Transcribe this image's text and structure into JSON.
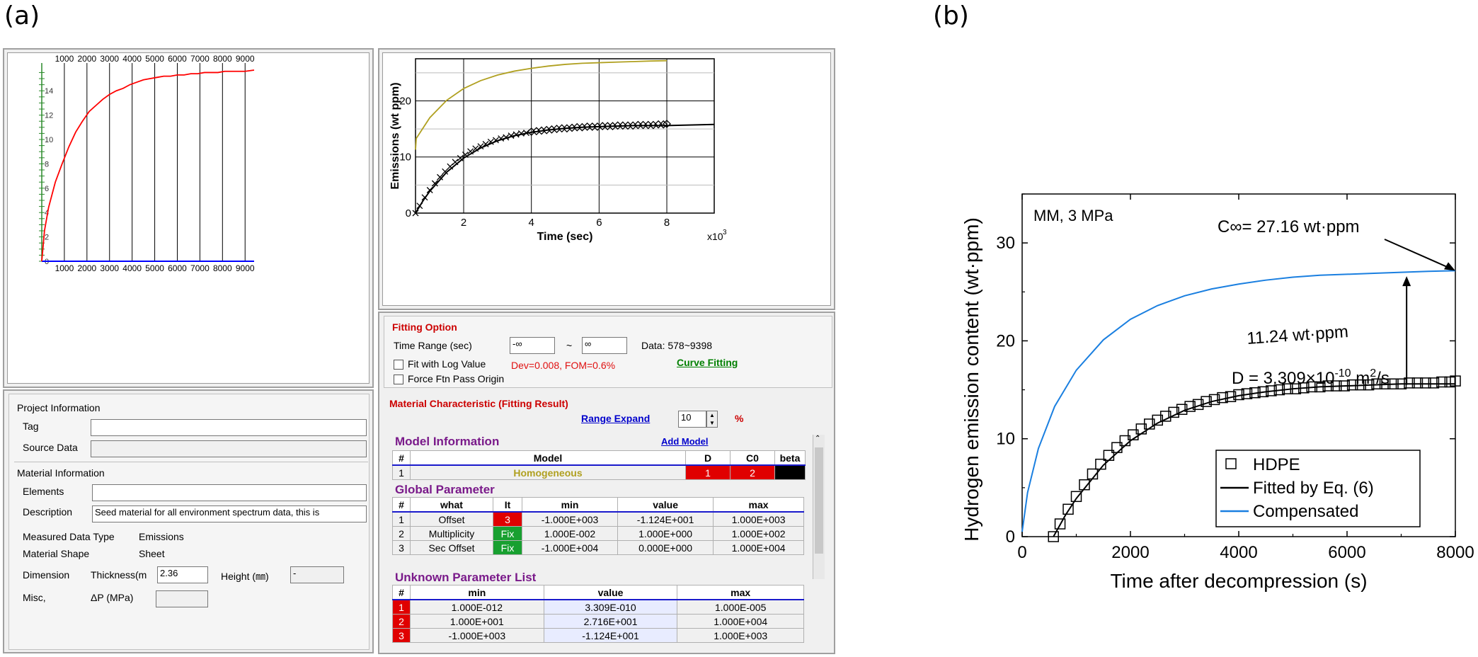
{
  "labels": {
    "a": "(a)",
    "b": "(b)"
  },
  "left_chart": {
    "ticks_x": [
      "1000",
      "2000",
      "3000",
      "4000",
      "5000",
      "6000",
      "7000",
      "8000",
      "9000"
    ],
    "ticks_y": [
      "14",
      "12",
      "10",
      "8",
      "6",
      "4",
      "2",
      "0"
    ],
    "x": [
      0,
      120,
      300,
      600,
      900,
      1200,
      1500,
      1800,
      2100,
      2400,
      2700,
      3000,
      3300,
      3600,
      3900,
      4200,
      4500,
      4800,
      5100,
      5400,
      5700,
      6000,
      6300,
      6600,
      6900,
      7200,
      7500,
      7800,
      8100,
      8400,
      8700,
      9000,
      9400
    ],
    "y": [
      0,
      2.5,
      4.4,
      6.5,
      8.0,
      9.4,
      10.6,
      11.5,
      12.3,
      12.8,
      13.3,
      13.7,
      14.0,
      14.2,
      14.5,
      14.7,
      14.9,
      15.0,
      15.1,
      15.2,
      15.2,
      15.3,
      15.3,
      15.4,
      15.4,
      15.5,
      15.5,
      15.5,
      15.6,
      15.6,
      15.6,
      15.6,
      15.7
    ],
    "line_color": "#ff0000"
  },
  "fit_chart": {
    "xlabel": "Time (sec)",
    "ylabel": "Emissions (wt ppm)",
    "x_ticks": [
      "2",
      "4",
      "6",
      "8"
    ],
    "y_ticks": [
      "0",
      "10",
      "20"
    ],
    "x_unit": "x10",
    "x_unit_exp": "3",
    "comp_color": "#b0a020"
  },
  "fitting_option": {
    "title": "Fitting Option",
    "time_range_label": "Time Range (sec)",
    "range_from": "-∞",
    "tilde": "~",
    "range_to": "∞",
    "data_info": "Data: 578~9398",
    "fit_log": "Fit with Log Value",
    "dev": "Dev=0.008,  FOM=0.6%",
    "curve_fitting": "Curve Fitting",
    "force_origin": "Force Ftn Pass Origin"
  },
  "material_char": {
    "title": "Material Characteristic (Fitting Result)",
    "range_expand": "Range Expand",
    "range_value": "10",
    "percent": "%",
    "model_info": "Model Information",
    "add_model": "Add Model",
    "model_headers": [
      "#",
      "Model",
      "D",
      "C0",
      "beta"
    ],
    "model_rows": [
      {
        "n": "1",
        "model": "Homogeneous",
        "d": "1",
        "c0": "2",
        "beta": ""
      }
    ],
    "global_param": "Global Parameter",
    "global_headers": [
      "#",
      "what",
      "It",
      "min",
      "value",
      "max"
    ],
    "global_rows": [
      {
        "n": "1",
        "what": "Offset",
        "it": "3",
        "min": "-1.000E+003",
        "value": "-1.124E+001",
        "max": "1.000E+003"
      },
      {
        "n": "2",
        "what": "Multiplicity",
        "it": "Fix",
        "min": "1.000E-002",
        "value": "1.000E+000",
        "max": "1.000E+002"
      },
      {
        "n": "3",
        "what": "Sec Offset",
        "it": "Fix",
        "min": "-1.000E+004",
        "value": "0.000E+000",
        "max": "1.000E+004"
      }
    ],
    "unknown_param": "Unknown Parameter List",
    "unknown_headers": [
      "#",
      "min",
      "value",
      "max"
    ],
    "unknown_rows": [
      {
        "n": "1",
        "min": "1.000E-012",
        "value": "3.309E-010",
        "max": "1.000E-005"
      },
      {
        "n": "2",
        "min": "1.000E+001",
        "value": "2.716E+001",
        "max": "1.000E+004"
      },
      {
        "n": "3",
        "min": "-1.000E+003",
        "value": "-1.124E+001",
        "max": "1.000E+003"
      }
    ]
  },
  "project_info": {
    "title": "Project Information",
    "tag_label": "Tag",
    "tag_value": "",
    "source_label": "Source Data",
    "source_value": ""
  },
  "material_info": {
    "title": "Material Information",
    "elements_label": "Elements",
    "elements_value": "",
    "description_label": "Description",
    "description_value": "Seed material for all environment spectrum data, this is",
    "measured_label": "Measured Data Type",
    "measured_value": "Emissions",
    "shape_label": "Material Shape",
    "shape_value": "Sheet",
    "dimension_label": "Dimension",
    "thickness_label": "Thickness(m",
    "thickness_value": "2.36",
    "height_label": "Height (㎜)",
    "height_value": "-",
    "misc_label": "Misc,",
    "dp_label": "ΔP (MPa)",
    "dp_value": ""
  },
  "chart_b": {
    "annotation_tl": "MM, 3 MPa",
    "c_inf": "C∞= 27.16 wt·ppm",
    "diff": "11.24 wt·ppm",
    "d_value": "D = 3.309×10",
    "d_exp": "-10",
    "d_unit": " m",
    "d_unit_exp": "2",
    "d_unit_tail": "/s",
    "xlabel": "Time after decompression (s)",
    "ylabel": "Hydrogen emission content (wt·ppm)",
    "x_ticks": [
      "0",
      "2000",
      "4000",
      "6000",
      "8000"
    ],
    "y_ticks": [
      "0",
      "10",
      "20",
      "30"
    ],
    "xlim": [
      0,
      8000
    ],
    "ylim": [
      0,
      35
    ],
    "legend": [
      "HDPE",
      "Fitted by Eq. (6)",
      "Compensated"
    ],
    "compensated_color": "#1a7fe0"
  },
  "chart_data": [
    {
      "type": "line",
      "series": [
        {
          "name": "HDPE",
          "x": [
            578,
            700,
            850,
            1000,
            1150,
            1300,
            1450,
            1600,
            1750,
            1900,
            2050,
            2200,
            2350,
            2500,
            2650,
            2800,
            2950,
            3100,
            3250,
            3400,
            3550,
            3700,
            3850,
            4000,
            4150,
            4300,
            4450,
            4600,
            4750,
            4900,
            5050,
            5200,
            5350,
            5500,
            5650,
            5800,
            5950,
            6100,
            6250,
            6400,
            6550,
            6700,
            6850,
            7000,
            7150,
            7300,
            7450,
            7600,
            7750,
            7900,
            8000
          ],
          "y": [
            0,
            1.3,
            2.8,
            4.1,
            5.3,
            6.4,
            7.4,
            8.3,
            9.1,
            9.8,
            10.4,
            11.0,
            11.5,
            11.9,
            12.3,
            12.7,
            13.0,
            13.3,
            13.5,
            13.8,
            14.0,
            14.2,
            14.3,
            14.5,
            14.6,
            14.7,
            14.8,
            14.9,
            15.0,
            15.1,
            15.1,
            15.2,
            15.3,
            15.3,
            15.4,
            15.4,
            15.4,
            15.5,
            15.5,
            15.5,
            15.6,
            15.6,
            15.6,
            15.6,
            15.7,
            15.7,
            15.7,
            15.7,
            15.8,
            15.8,
            15.9
          ]
        },
        {
          "name": "Fitted by Eq. (6)",
          "x": [
            578,
            800,
            1000,
            1500,
            2000,
            2500,
            3000,
            3500,
            4000,
            4500,
            5000,
            5500,
            6000,
            6500,
            7000,
            7500,
            8000
          ],
          "y": [
            0,
            2.2,
            3.9,
            7.3,
            9.8,
            11.6,
            12.9,
            13.8,
            14.4,
            14.8,
            15.1,
            15.3,
            15.4,
            15.5,
            15.6,
            15.6,
            15.6
          ]
        },
        {
          "name": "Compensated",
          "x": [
            0,
            100,
            300,
            600,
            1000,
            1500,
            2000,
            2500,
            3000,
            3500,
            4000,
            4500,
            5000,
            5500,
            6000,
            6500,
            7000,
            7500,
            8000
          ],
          "y": [
            0.5,
            4.5,
            9.0,
            13.3,
            17.0,
            20.1,
            22.2,
            23.6,
            24.6,
            25.3,
            25.8,
            26.2,
            26.5,
            26.7,
            26.8,
            26.9,
            27.0,
            27.1,
            27.16
          ]
        }
      ],
      "xlabel": "Time after decompression (s)",
      "ylabel": "Hydrogen emission content (wt·ppm)",
      "xlim": [
        0,
        8000
      ],
      "ylim": [
        0,
        35
      ],
      "grid": false,
      "legend": "bottom-right"
    }
  ]
}
